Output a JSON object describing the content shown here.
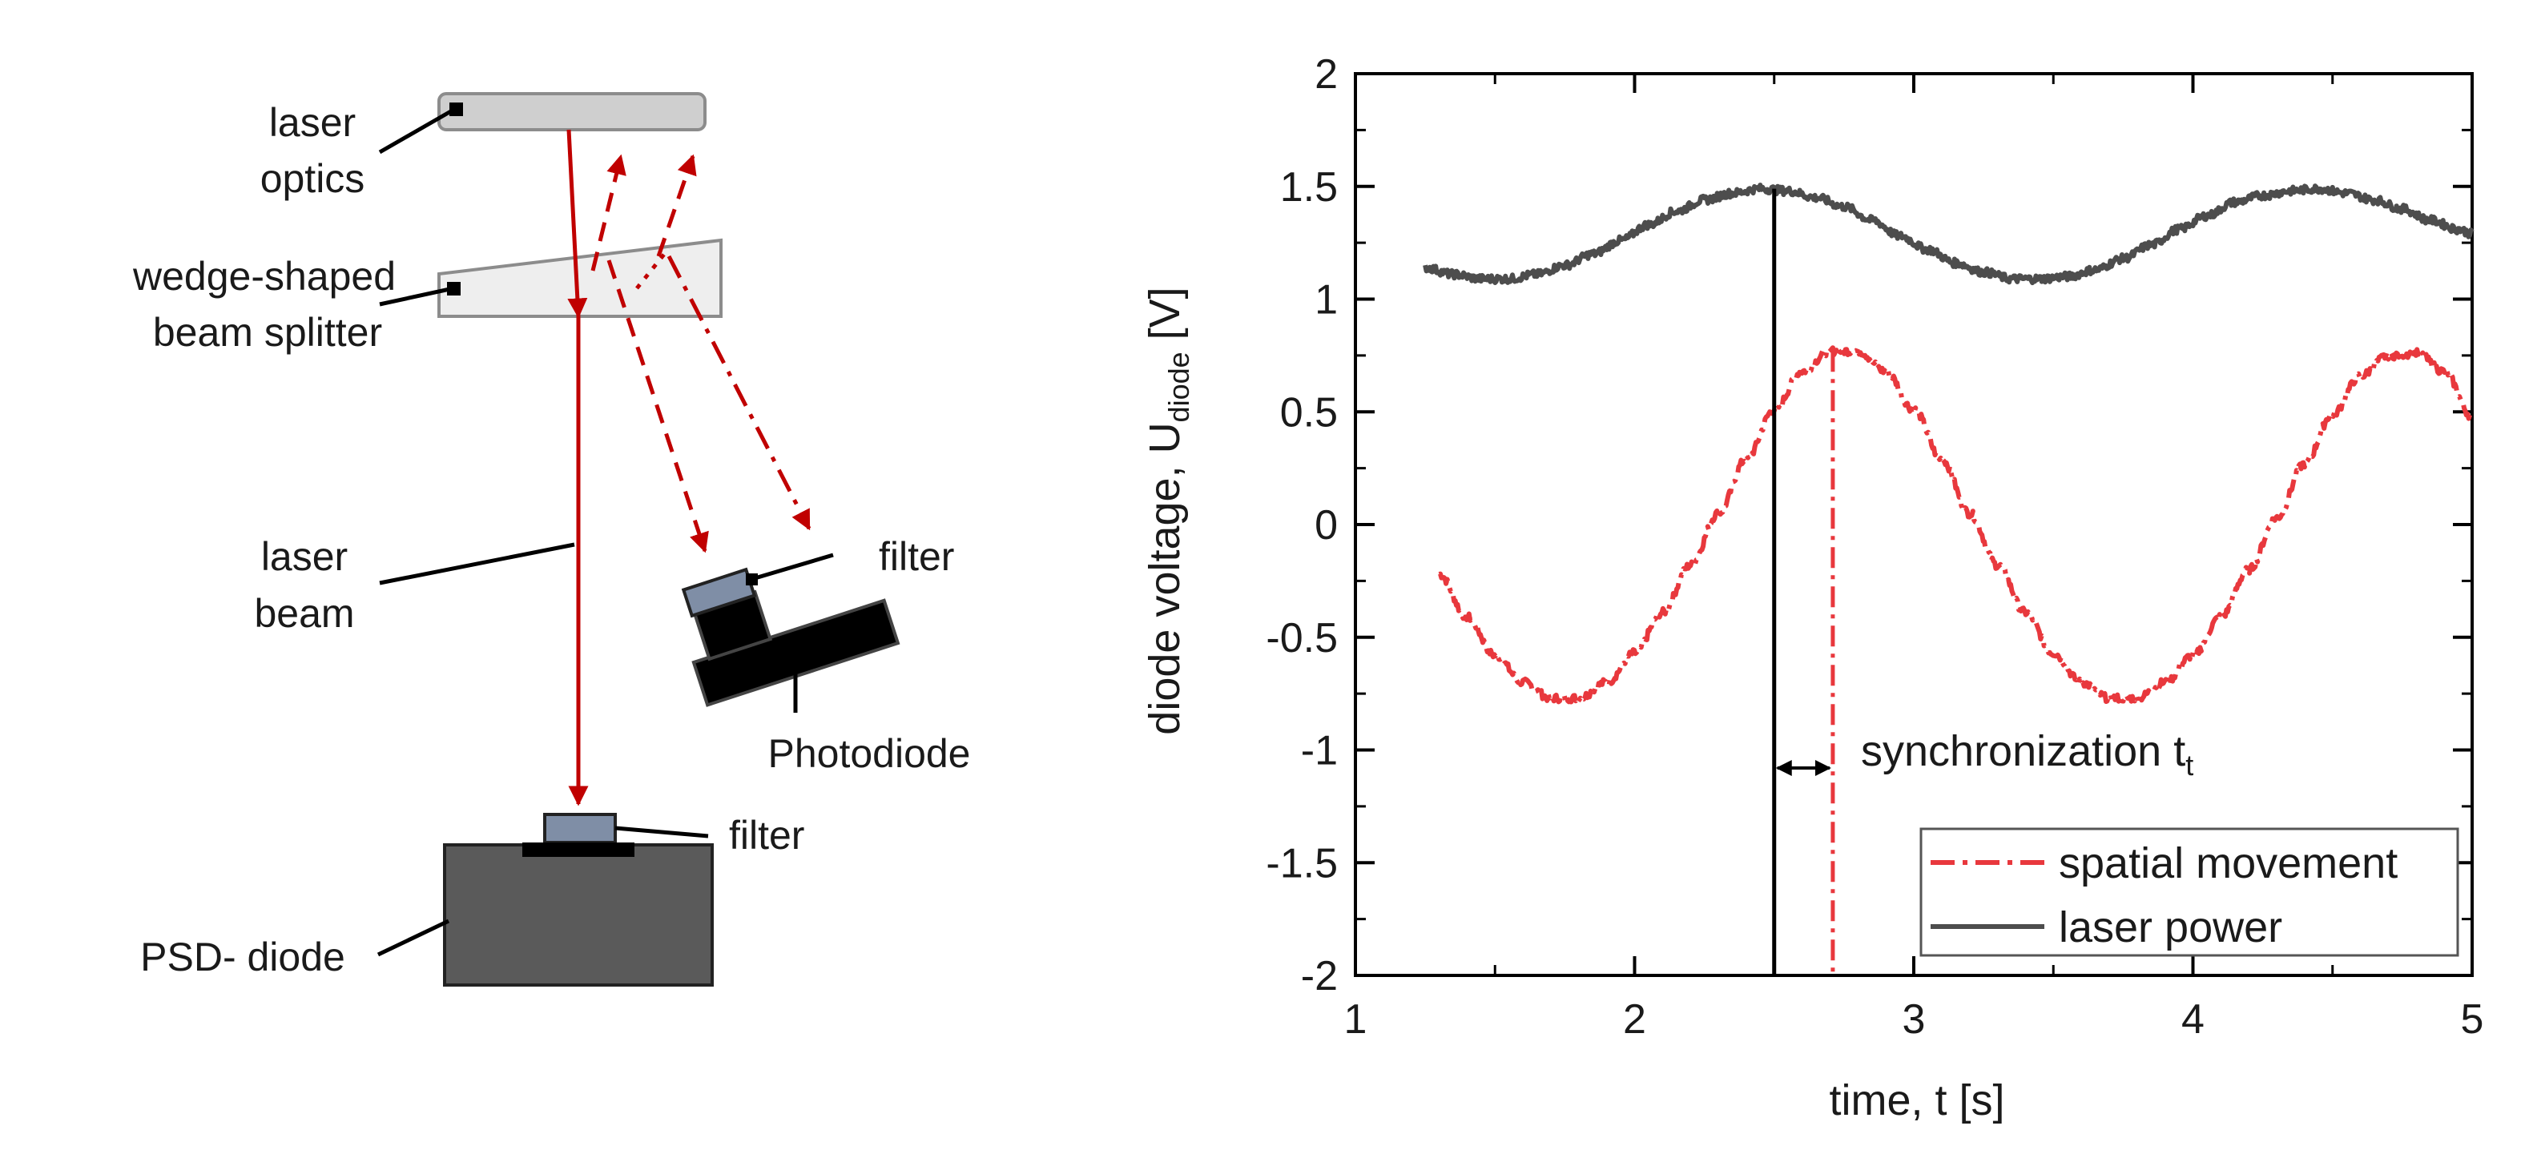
{
  "schematic": {
    "labels": {
      "laser_optics": [
        "laser",
        "optics"
      ],
      "beam_splitter": [
        "wedge-shaped",
        "beam splitter"
      ],
      "laser_beam": [
        "laser",
        "beam"
      ],
      "filter_top": "filter",
      "photodiode": "Photodiode",
      "filter_bottom": "filter",
      "psd_diode": "PSD- diode"
    },
    "colors": {
      "beam": "#c00000",
      "optics_fill": "#cfcfcf",
      "splitter_fill": "#eeeeee",
      "filter_fill": "#7f8ea6",
      "photodiode_fill": "#000000",
      "psd_fill": "#5a5a5a"
    }
  },
  "chart_data": {
    "type": "line",
    "title": "",
    "xlabel": "time, t [s]",
    "ylabel_main": "diode voltage, U",
    "ylabel_sub": "diode",
    "ylabel_unit": " [V]",
    "xlim": [
      1,
      5
    ],
    "ylim": [
      -2,
      2
    ],
    "xticks": [
      1,
      2,
      3,
      4,
      5
    ],
    "yticks": [
      -2,
      -1.5,
      -1,
      -0.5,
      0,
      0.5,
      1,
      1.5,
      2
    ],
    "ytick_labels": [
      "-2",
      "-1.5",
      "-1",
      "-0.5",
      "0",
      "0.5",
      "1",
      "1.5",
      "2"
    ],
    "series": [
      {
        "name": "spatial movement",
        "color": "#e8383d",
        "style": "dash-dot",
        "x": [
          1.3,
          1.4,
          1.5,
          1.6,
          1.7,
          1.8,
          1.9,
          2.0,
          2.1,
          2.2,
          2.3,
          2.4,
          2.5,
          2.6,
          2.7,
          2.8,
          2.9,
          3.0,
          3.1,
          3.2,
          3.3,
          3.4,
          3.5,
          3.6,
          3.7,
          3.8,
          3.9,
          4.0,
          4.1,
          4.2,
          4.3,
          4.4,
          4.5,
          4.6,
          4.7,
          4.8,
          4.9,
          5.0
        ],
        "values": [
          -0.22,
          -0.41,
          -0.58,
          -0.7,
          -0.77,
          -0.77,
          -0.7,
          -0.57,
          -0.39,
          -0.18,
          0.05,
          0.29,
          0.51,
          0.68,
          0.77,
          0.77,
          0.68,
          0.51,
          0.29,
          0.05,
          -0.18,
          -0.39,
          -0.57,
          -0.7,
          -0.77,
          -0.77,
          -0.7,
          -0.58,
          -0.41,
          -0.2,
          0.03,
          0.27,
          0.49,
          0.66,
          0.75,
          0.76,
          0.68,
          0.48
        ]
      },
      {
        "name": "laser power",
        "color": "#4d4d4d",
        "style": "solid",
        "x": [
          1.25,
          1.35,
          1.45,
          1.55,
          1.65,
          1.75,
          1.85,
          1.95,
          2.05,
          2.15,
          2.25,
          2.35,
          2.45,
          2.55,
          2.65,
          2.75,
          2.85,
          2.95,
          3.05,
          3.15,
          3.25,
          3.35,
          3.45,
          3.55,
          3.65,
          3.75,
          3.85,
          3.95,
          4.05,
          4.15,
          4.25,
          4.35,
          4.45,
          4.55,
          4.65,
          4.75,
          4.85,
          4.95,
          5.0
        ],
        "values": [
          1.14,
          1.11,
          1.09,
          1.09,
          1.11,
          1.15,
          1.2,
          1.26,
          1.33,
          1.39,
          1.44,
          1.47,
          1.49,
          1.48,
          1.45,
          1.41,
          1.35,
          1.28,
          1.22,
          1.16,
          1.12,
          1.09,
          1.09,
          1.1,
          1.13,
          1.18,
          1.24,
          1.31,
          1.37,
          1.43,
          1.46,
          1.48,
          1.49,
          1.47,
          1.44,
          1.4,
          1.35,
          1.31,
          1.29
        ]
      }
    ],
    "markers": {
      "laser_power_peak_t": 2.5,
      "movement_peak_t": 2.71
    },
    "annotation": {
      "text": "synchronization t",
      "sub": "t"
    },
    "legend": {
      "position": "bottom-right",
      "entries": [
        "spatial movement",
        "laser power"
      ]
    }
  }
}
